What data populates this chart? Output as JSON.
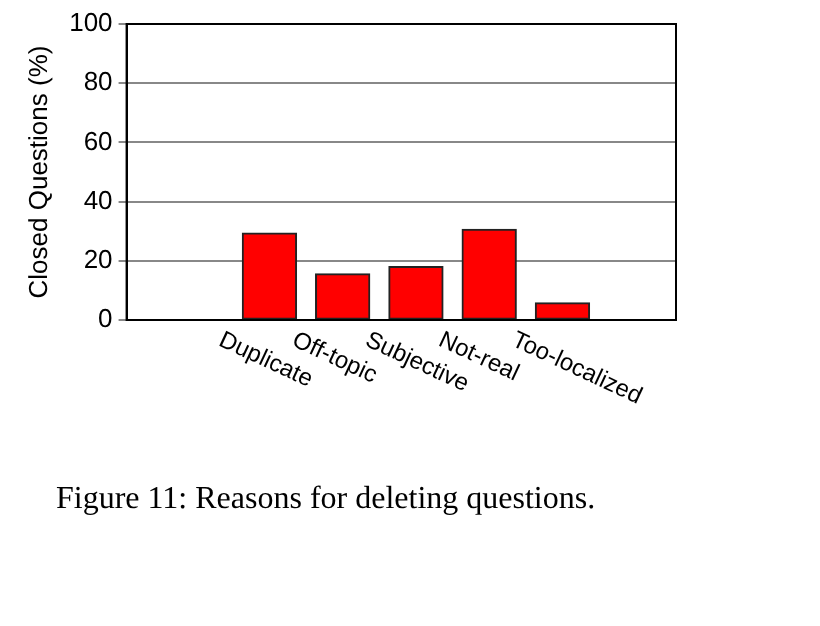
{
  "chart_data": {
    "type": "bar",
    "categories": [
      "Duplicate",
      "Off-topic",
      "Subjective",
      "Not-real",
      "Too-localized"
    ],
    "values": [
      29.3,
      15.6,
      18,
      30.6,
      5.8
    ],
    "color": "#ff0000",
    "ylabel": "Closed Questions (%)",
    "ylim": [
      0,
      100
    ],
    "yticks": [
      0,
      20,
      40,
      60,
      80,
      100
    ],
    "grid": "y",
    "legend": false,
    "annotations": [
      "Figure 11: Reasons for deleting questions."
    ]
  }
}
